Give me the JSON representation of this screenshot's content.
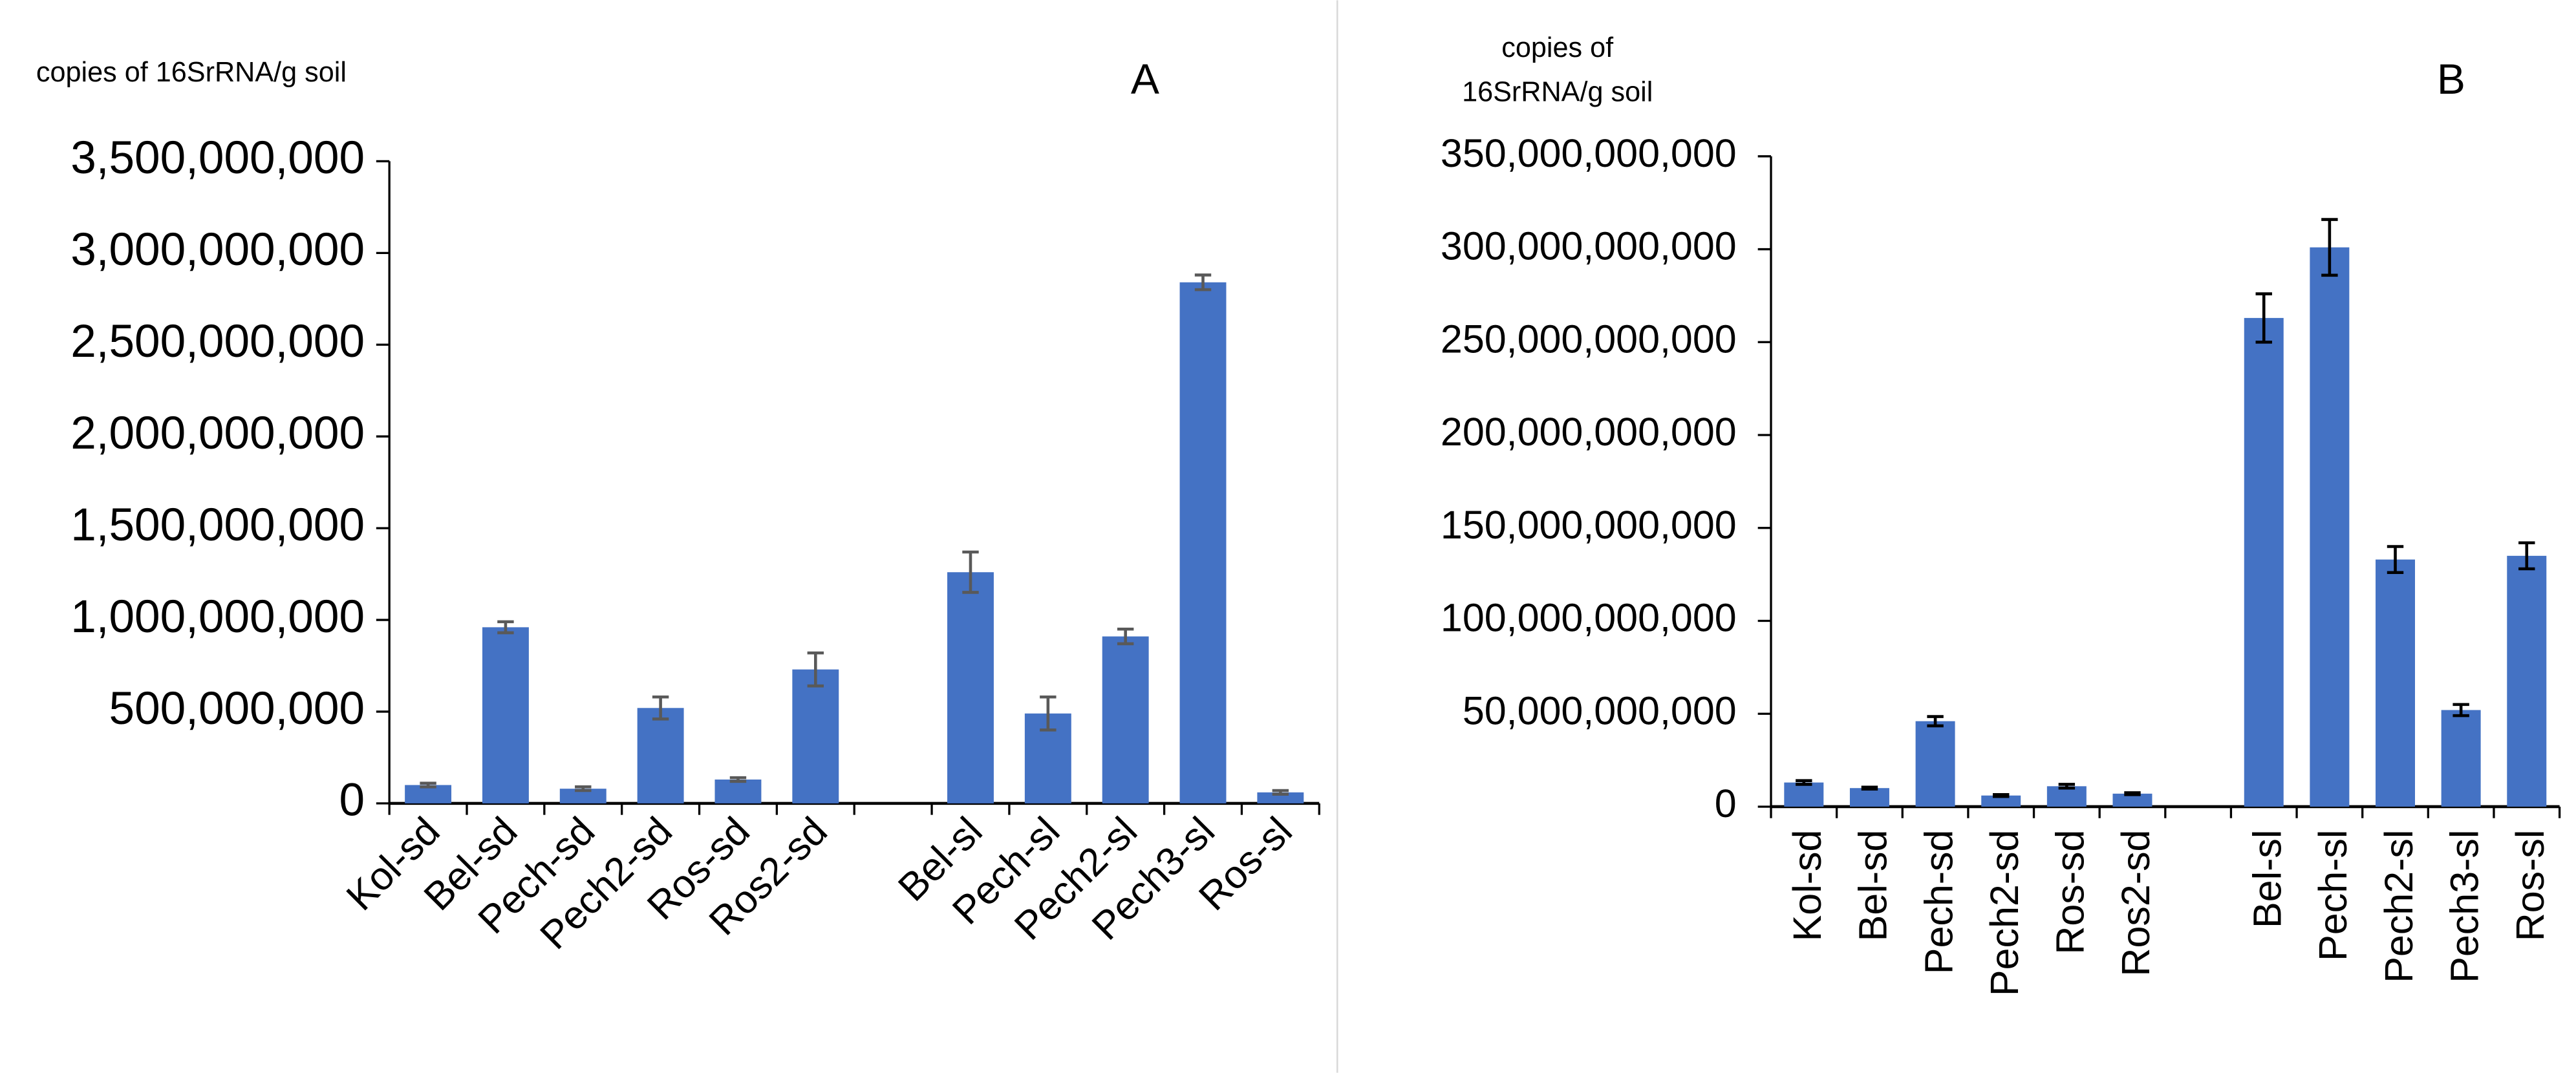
{
  "chart_data": [
    {
      "type": "bar",
      "title": "A",
      "ylabel": "copies of 16SrRNA/g soil",
      "categories": [
        "Kol-sd",
        "Bel-sd",
        "Pech-sd",
        "Pech2-sd",
        "Ros-sd",
        "Ros2-sd",
        null,
        "Bel-sl",
        "Pech-sl",
        "Pech2-sl",
        "Pech3-sl",
        "Ros-sl"
      ],
      "values": [
        100000000,
        960000000,
        80000000,
        520000000,
        130000000,
        730000000,
        null,
        1260000000,
        490000000,
        910000000,
        2840000000,
        60000000
      ],
      "errors": [
        10000000,
        30000000,
        10000000,
        60000000,
        10000000,
        90000000,
        null,
        110000000,
        90000000,
        40000000,
        40000000,
        10000000
      ],
      "color": "#4472c4",
      "error_color": "#595959",
      "ylim": [
        0,
        3500000000
      ],
      "yticks": [
        0,
        {
          "value": 500000000,
          "label": "500,000,000"
        },
        {
          "value": 1000000000,
          "label": "1,000,000,000"
        },
        {
          "value": 1500000000,
          "label": "1,500,000,000"
        },
        {
          "value": 2000000000,
          "label": "2,000,000,000"
        },
        {
          "value": 2500000000,
          "label": "2,500,000,000"
        },
        {
          "value": 3000000000,
          "label": "3,000,000,000"
        },
        {
          "value": 3500000000,
          "label": "3,500,000,000"
        }
      ]
    },
    {
      "type": "bar",
      "title": "B",
      "ylabel": [
        "copies of",
        "16SrRNA/g soil"
      ],
      "categories": [
        "Kol-sd",
        "Bel-sd",
        "Pech-sd",
        "Pech2-sd",
        "Ros-sd",
        "Ros2-sd",
        null,
        "Bel-sl",
        "Pech-sl",
        "Pech2-sl",
        "Pech3-sl",
        "Ros-sl"
      ],
      "values": [
        13000000000,
        10000000000,
        46000000000,
        6000000000,
        11000000000,
        7000000000,
        null,
        263000000000,
        301000000000,
        133000000000,
        52000000000,
        135000000000
      ],
      "errors": [
        1000000000,
        500000000,
        2500000000,
        500000000,
        1000000000,
        500000000,
        null,
        13000000000,
        15000000000,
        7000000000,
        3000000000,
        7000000000
      ],
      "color": "#4472c4",
      "error_color": "#000000",
      "ylim": [
        0,
        350000000000
      ],
      "yticks": [
        0,
        {
          "value": 50000000000,
          "label": "50,000,000,000"
        },
        {
          "value": 100000000000,
          "label": "100,000,000,000"
        },
        {
          "value": 150000000000,
          "label": "150,000,000,000"
        },
        {
          "value": 200000000000,
          "label": "200,000,000,000"
        },
        {
          "value": 250000000000,
          "label": "250,000,000,000"
        },
        {
          "value": 300000000000,
          "label": "300,000,000,000"
        },
        {
          "value": 350000000000,
          "label": "350,000,000,000"
        }
      ]
    }
  ]
}
